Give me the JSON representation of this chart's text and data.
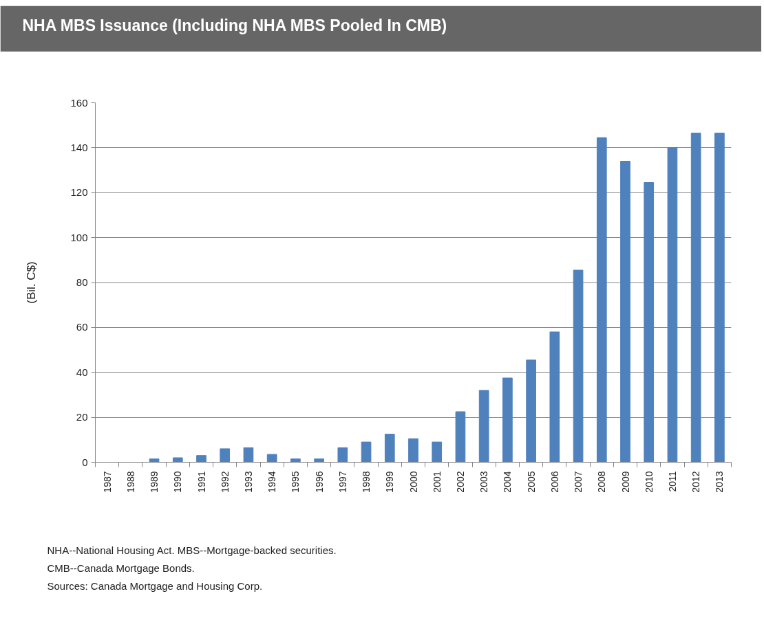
{
  "chart_data": {
    "type": "bar",
    "title": "NHA MBS Issuance (Including NHA MBS Pooled In CMB)",
    "ylabel": "(Bil. C$)",
    "categories": [
      "1987",
      "1988",
      "1989",
      "1990",
      "1991",
      "1992",
      "1993",
      "1994",
      "1995",
      "1996",
      "1997",
      "1998",
      "1999",
      "2000",
      "2001",
      "2002",
      "2003",
      "2004",
      "2005",
      "2006",
      "2007",
      "2008",
      "2009",
      "2010",
      "2011",
      "2012",
      "2013"
    ],
    "values": [
      0,
      0,
      1.5,
      2,
      3,
      6,
      6.5,
      3.5,
      1.5,
      1.5,
      6.5,
      9,
      12.5,
      10.5,
      9,
      22.5,
      32,
      37.5,
      45.5,
      58,
      85.5,
      144.5,
      134,
      124.5,
      140,
      146.5,
      146.5
    ],
    "color": "#4f81bd",
    "ylim": [
      0,
      160
    ],
    "yticks": [
      0,
      20,
      40,
      60,
      80,
      100,
      120,
      140,
      160
    ],
    "grid": "y",
    "annotations": [
      "NHA--National Housing Act. MBS--Mortgage-backed securities.",
      "CMB--Canada Mortgage Bonds.",
      "Sources: Canada Mortgage and Housing Corp."
    ]
  }
}
